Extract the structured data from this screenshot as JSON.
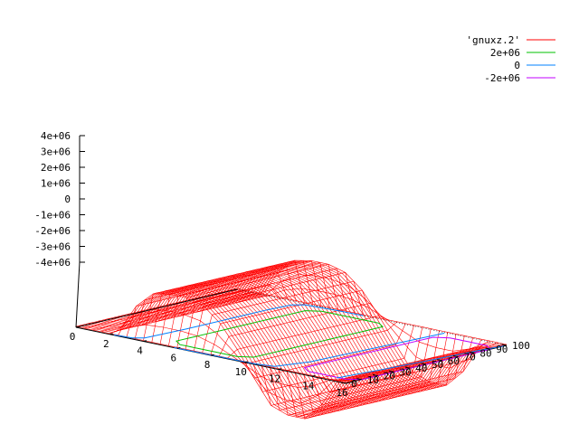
{
  "chart_data": {
    "type": "surface",
    "legend": {
      "placement": "top-right",
      "entries": [
        {
          "label": "'gnuxz.2'",
          "color": "#ff0000",
          "kind": "surface"
        },
        {
          "label": "2e+06",
          "color": "#00c000",
          "kind": "contour"
        },
        {
          "label": "0",
          "color": "#0080ff",
          "kind": "contour"
        },
        {
          "label": "-2e+06",
          "color": "#c000ff",
          "kind": "contour"
        }
      ]
    },
    "x_axis": {
      "range": [
        0,
        16
      ],
      "ticks": [
        "0",
        "2",
        "4",
        "6",
        "8",
        "10",
        "12",
        "14",
        "16"
      ]
    },
    "y_axis": {
      "range": [
        0,
        100
      ],
      "ticks": [
        "0",
        "10",
        "20",
        "30",
        "40",
        "50",
        "60",
        "70",
        "80",
        "90",
        "100"
      ]
    },
    "z_axis": {
      "range": [
        -4000000,
        4000000
      ],
      "ticks": [
        "4e+06",
        "3e+06",
        "2e+06",
        "1e+06",
        "0",
        "-1e+06",
        "-2e+06",
        "-3e+06",
        "-4e+06"
      ]
    },
    "surface_profile": {
      "x": [
        0,
        1,
        2,
        3,
        4,
        5,
        6,
        7,
        8,
        9,
        10,
        11,
        12,
        13,
        14,
        15,
        16
      ],
      "z": [
        0,
        0,
        50000,
        1800000,
        2800000,
        3000000,
        3000000,
        2700000,
        1800000,
        400000,
        -1200000,
        -2700000,
        -3100000,
        -3100000,
        -2000000,
        -200000,
        0
      ]
    },
    "contour_levels": [
      2000000,
      0,
      -2000000
    ],
    "grid": false
  }
}
